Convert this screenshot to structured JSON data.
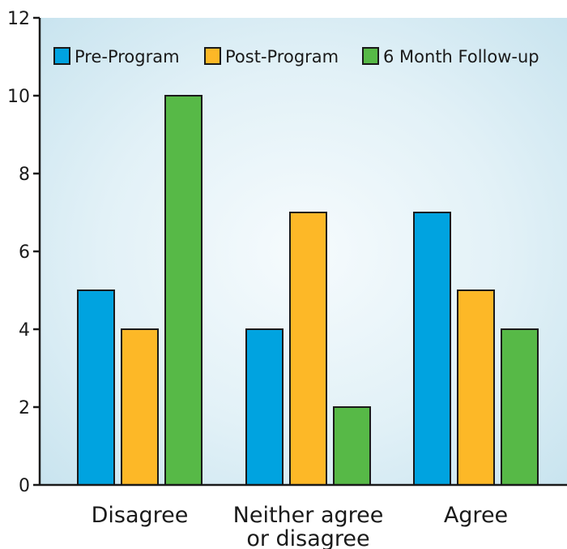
{
  "chart_data": {
    "type": "bar",
    "title": "",
    "xlabel": "",
    "ylabel": "",
    "categories": [
      "Disagree",
      "Neither agree or disagree",
      "Agree"
    ],
    "category_lines": [
      [
        "Disagree"
      ],
      [
        "Neither agree",
        "or disagree"
      ],
      [
        "Agree"
      ]
    ],
    "series": [
      {
        "name": "Pre-Program",
        "values": [
          5,
          4,
          7
        ],
        "color": "#00a3e0"
      },
      {
        "name": "Post-Program",
        "values": [
          4,
          7,
          5
        ],
        "color": "#fdb827"
      },
      {
        "name": "6 Month Follow-up",
        "values": [
          10,
          2,
          4
        ],
        "color": "#57b947"
      }
    ],
    "ylim": [
      0,
      12
    ],
    "yticks": [
      0,
      2,
      4,
      6,
      8,
      10,
      12
    ],
    "ytick_labels": [
      "0",
      "2",
      "4",
      "6",
      "8",
      "10",
      "12"
    ],
    "grid": false,
    "legend_position": "top",
    "background": "light-blue-radial-gradient"
  }
}
